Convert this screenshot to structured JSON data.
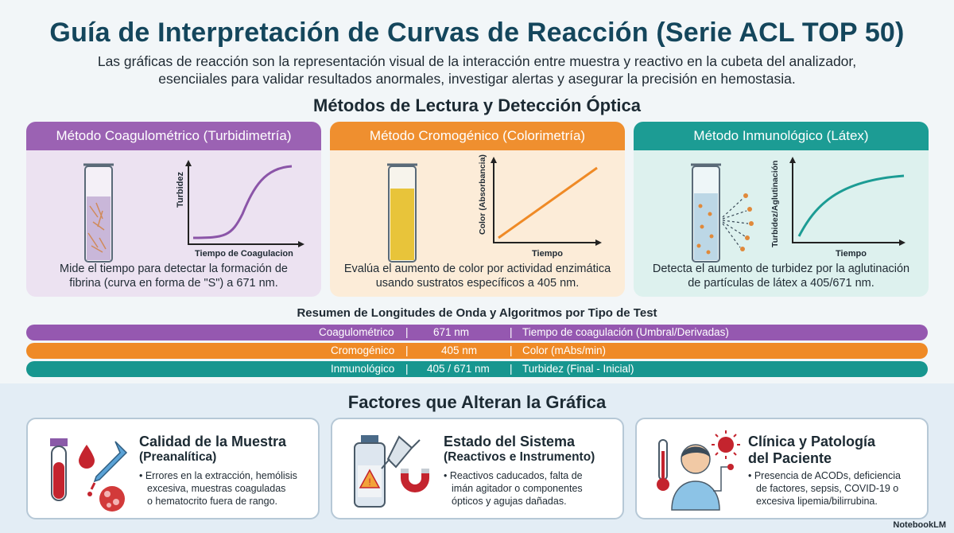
{
  "title": "Guía de Interpretación de Curvas de Reacción (Serie ACL TOP 50)",
  "subtitle_line1": "Las gráficas de reacción son la representación visual de la interacción entre muestra y reactivo en la cubeta del analizador,",
  "subtitle_line2": "esenciiales para validar resultados anormales, investigar alertas y asegurar la precisión en hemostasia.",
  "methods_heading": "Métodos de Lectura y Detección Óptica",
  "methods": [
    {
      "header": "Método Coagulométrico (Turbidimetría)",
      "ylabel": "Turbidez",
      "xlabel": "Tiempo de Coagulacion",
      "desc1": "Mide el tiempo para detectar la formación de",
      "desc2": "fibrina (curva en forma de \"S\") a 671 nm.",
      "color": "#9b62b3"
    },
    {
      "header": "Método Cromogénico (Colorimetría)",
      "ylabel": "Color (Absorbancia)",
      "xlabel": "Tiempo",
      "desc1": "Evalúa el aumento de color por actividad enzimática",
      "desc2": "usando sustratos específicos a 405 nm.",
      "color": "#ef8f2f"
    },
    {
      "header": "Método Inmunológico (Látex)",
      "ylabel": "Turbidez/Aglutinación",
      "xlabel": "Tiempo",
      "desc1": "Detecta el aumento de turbidez por la aglutinación",
      "desc2": "de partículas de látex a 405/671 nm.",
      "color": "#1c9c94"
    }
  ],
  "summary_heading": "Resumen de Longitudes de Onda y Algoritmos por Tipo de Test",
  "summary_rows": [
    {
      "test": "Coagulométrico",
      "sep1": "|",
      "wavelength": "671 nm",
      "sep2": "|",
      "algorithm": "Tiempo de coagulación (Umbral/Derivadas)",
      "color": "#9558b0"
    },
    {
      "test": "Cromogénico",
      "sep1": "|",
      "wavelength": "405 nm",
      "sep2": "|",
      "algorithm": "Color (mAbs/min)",
      "color": "#ef8a26"
    },
    {
      "test": "Inmunológico",
      "sep1": "|",
      "wavelength": "405 / 671 nm",
      "sep2": "|",
      "algorithm": "Turbidez (Final - Inicial)",
      "color": "#17968f"
    }
  ],
  "factors_heading": "Factores que Alteran la Gráfica",
  "factors": [
    {
      "title": "Calidad de la Muestra",
      "subtitle": "(Preanalítica)",
      "b1": "• Errores en la extracción, hemólisis",
      "b2": "excesiva, muestras coaguladas",
      "b3": "o hematocrito fuera de rango.",
      "icon": "blood-sample-icon"
    },
    {
      "title": "Estado del Sistema",
      "subtitle": "(Reactivos e Instrumento)",
      "b1": "• Reactivos caducados, falta de",
      "b2": "imán agitador o componentes",
      "b3": "ópticos y agujas dañadas.",
      "icon": "reagent-magnet-icon"
    },
    {
      "title": "Clínica y Patología",
      "title2": "del Paciente",
      "b1": "• Presencia de ACODs, deficiencia",
      "b2": "de factores, sepsis, COVID-19 o",
      "b3": "excesiva lipemia/bilirrubina.",
      "icon": "patient-icon"
    }
  ],
  "brand": "NotebookLM"
}
